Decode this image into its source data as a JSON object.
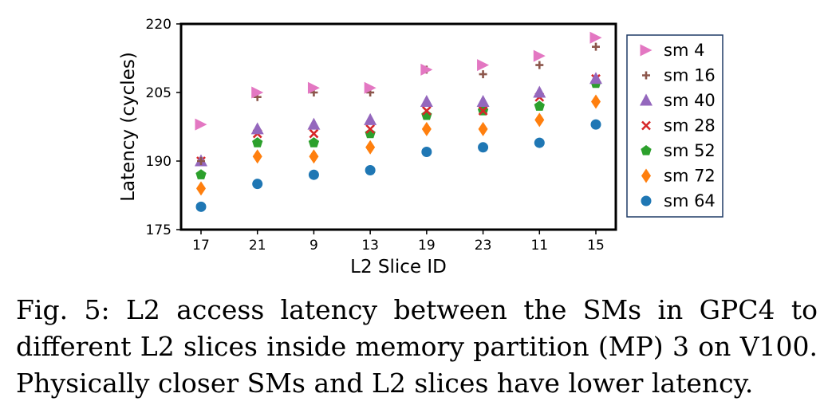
{
  "caption": "Fig. 5: L2 access latency between the SMs in GPC4 to different L2 slices inside memory partition (MP) 3 on V100. Physically closer SMs and L2 slices have lower latency.",
  "chart_data": {
    "type": "scatter",
    "title": "",
    "xlabel": "L2 Slice ID",
    "ylabel": "Latency (cycles)",
    "categories": [
      "17",
      "21",
      "9",
      "13",
      "19",
      "23",
      "11",
      "15"
    ],
    "ylim": [
      175,
      220
    ],
    "yticks": [
      "175",
      "190",
      "205",
      "220"
    ],
    "grid": false,
    "legend_position": "right, outside plot",
    "series": [
      {
        "name": "sm 4",
        "marker": "triangle-right",
        "color": "#e377c2",
        "values": [
          198,
          205,
          206,
          206,
          210,
          211,
          213,
          217
        ]
      },
      {
        "name": "sm 16",
        "marker": "plus",
        "color": "#8c564b",
        "values": [
          190,
          204,
          205,
          205,
          210,
          209,
          211,
          215
        ]
      },
      {
        "name": "sm 40",
        "marker": "triangle-up",
        "color": "#9467bd",
        "values": [
          190,
          197,
          198,
          199,
          203,
          203,
          205,
          208
        ]
      },
      {
        "name": "sm 28",
        "marker": "x",
        "color": "#d62728",
        "values": [
          190,
          196,
          196,
          197,
          201,
          201,
          204,
          208
        ]
      },
      {
        "name": "sm 52",
        "marker": "pentagon",
        "color": "#2ca02c",
        "values": [
          187,
          194,
          194,
          196,
          200,
          201,
          202,
          207
        ]
      },
      {
        "name": "sm 72",
        "marker": "diamond",
        "color": "#ff7f0e",
        "values": [
          184,
          191,
          191,
          193,
          197,
          197,
          199,
          203
        ]
      },
      {
        "name": "sm 64",
        "marker": "circle",
        "color": "#1f77b4",
        "values": [
          180,
          185,
          187,
          188,
          192,
          193,
          194,
          198
        ]
      }
    ]
  }
}
